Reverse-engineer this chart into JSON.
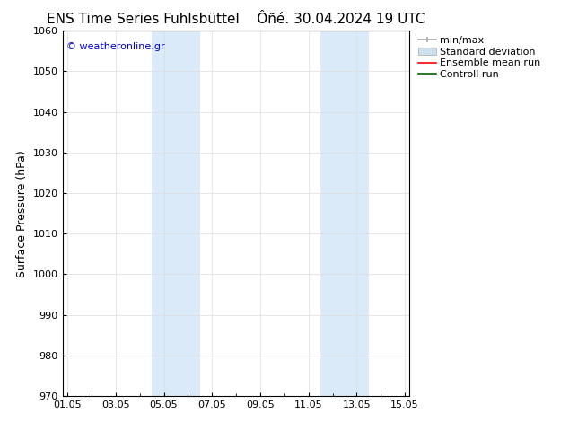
{
  "title_left": "ENS Time Series Fuhlsbüttel",
  "title_right": "Ôñé. 30.04.2024 19 UTC",
  "ylabel": "Surface Pressure (hPa)",
  "ylim": [
    970,
    1060
  ],
  "yticks": [
    970,
    980,
    990,
    1000,
    1010,
    1020,
    1030,
    1040,
    1050,
    1060
  ],
  "xtick_labels": [
    "01.05",
    "03.05",
    "05.05",
    "07.05",
    "09.05",
    "11.05",
    "13.05",
    "15.05"
  ],
  "xtick_positions": [
    0,
    2,
    4,
    6,
    8,
    10,
    12,
    14
  ],
  "xlim": [
    -0.2,
    14.2
  ],
  "shaded_bands": [
    {
      "x_start": 3.5,
      "x_end": 5.5
    },
    {
      "x_start": 10.5,
      "x_end": 12.5
    }
  ],
  "band_color": "#daeaf8",
  "copyright_text": "© weatheronline.gr",
  "copyright_color": "#0000cc",
  "background_color": "#ffffff",
  "legend_entries": [
    "min/max",
    "Standard deviation",
    "Ensemble mean run",
    "Controll run"
  ],
  "title_fontsize": 11,
  "axis_label_fontsize": 9,
  "tick_fontsize": 8,
  "legend_fontsize": 8
}
